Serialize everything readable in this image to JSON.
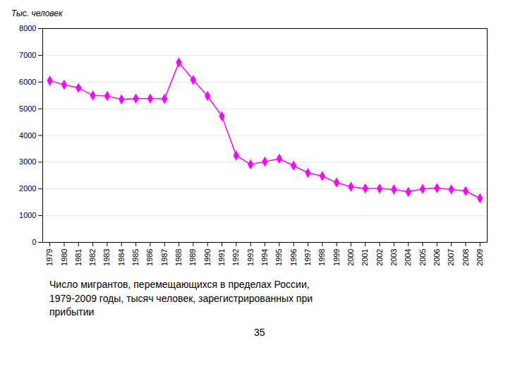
{
  "chart_data": {
    "type": "line",
    "ylabel": "Тыс. человек",
    "caption": "Число мигрантов, перемещающихся в пределах России,\n1979-2009 годы, тысяч человек, зарегистрированных при\nприбытии",
    "annotations": [
      "35"
    ],
    "x": [
      1979,
      1980,
      1981,
      1982,
      1983,
      1984,
      1985,
      1986,
      1987,
      1988,
      1989,
      1990,
      1991,
      1992,
      1993,
      1994,
      1995,
      1996,
      1997,
      1998,
      1999,
      2000,
      2001,
      2002,
      2003,
      2004,
      2005,
      2006,
      2007,
      2008,
      2009
    ],
    "values": [
      6050,
      5900,
      5780,
      5500,
      5480,
      5350,
      5380,
      5380,
      5370,
      6730,
      6080,
      5480,
      4720,
      3250,
      2920,
      3020,
      3130,
      2870,
      2600,
      2480,
      2240,
      2080,
      2020,
      2010,
      1980,
      1890,
      2000,
      2030,
      1980,
      1920,
      1650
    ],
    "color": "#FF00FF",
    "marker": "diamond",
    "xlim": [
      1978.5,
      2009.5
    ],
    "xticks": [
      1979,
      1980,
      1981,
      1982,
      1983,
      1984,
      1985,
      1986,
      1987,
      1988,
      1989,
      1990,
      1991,
      1992,
      1993,
      1994,
      1995,
      1996,
      1997,
      1998,
      1999,
      2000,
      2001,
      2002,
      2003,
      2004,
      2005,
      2006,
      2007,
      2008,
      2009
    ],
    "ylim": [
      0,
      8000
    ],
    "yticks": [
      0,
      1000,
      2000,
      3000,
      4000,
      5000,
      6000,
      7000,
      8000
    ],
    "grid": true
  }
}
